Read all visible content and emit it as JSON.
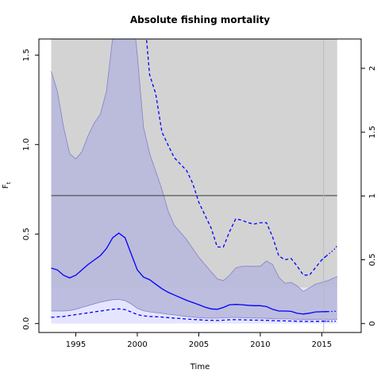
{
  "chart_data": {
    "type": "area",
    "title": "Absolute fishing mortality",
    "xlabel": "Time",
    "ylabel": "F",
    "ylabel_sub": "t",
    "xlim": [
      1992.0,
      2018.2
    ],
    "ylim": [
      -0.05,
      1.59
    ],
    "y2lim": [
      -0.07,
      2.23
    ],
    "x_ticks": [
      1995,
      2000,
      2005,
      2010,
      2015
    ],
    "x_tick_labels": [
      "1995",
      "2000",
      "2005",
      "2010",
      "2015"
    ],
    "y_ticks": [
      0.0,
      0.5,
      1.0,
      1.5
    ],
    "y_tick_labels": [
      "0.0",
      "0.5",
      "1.0",
      "1.5"
    ],
    "y2_ticks": [
      0,
      0.5,
      1,
      1.5,
      2
    ],
    "y2_tick_labels": [
      "0",
      "0.5",
      "1",
      "1.5",
      "2"
    ],
    "grey_region": {
      "x": [
        1993.0,
        2016.25
      ],
      "ymin": 0.2,
      "color": "#d3d3d3"
    },
    "reference_band": {
      "ymin": 0.0,
      "ymax": 0.2,
      "color": "#e5e5ff"
    },
    "reference_line": {
      "y": 0.715,
      "color": "#555555"
    },
    "end_of_data_x": 2015.15,
    "x": [
      1993.0,
      1993.5,
      1994.0,
      1994.5,
      1995.0,
      1995.5,
      1996.0,
      1996.5,
      1997.0,
      1997.5,
      1998.0,
      1998.5,
      1999.0,
      1999.5,
      2000.0,
      2000.5,
      2001.0,
      2001.5,
      2002.0,
      2002.5,
      2003.0,
      2003.5,
      2004.0,
      2004.5,
      2005.0,
      2005.5,
      2006.0,
      2006.5,
      2007.0,
      2007.5,
      2008.0,
      2008.5,
      2009.0,
      2009.5,
      2010.0,
      2010.5,
      2011.0,
      2011.5,
      2012.0,
      2012.5,
      2013.0,
      2013.5,
      2014.0,
      2014.5,
      2015.0,
      2015.5,
      2016.0,
      2016.25
    ],
    "F_estimate": [
      0.31,
      0.3,
      0.27,
      0.255,
      0.27,
      0.3,
      0.33,
      0.355,
      0.38,
      0.42,
      0.48,
      0.505,
      0.48,
      0.39,
      0.3,
      0.26,
      0.245,
      0.22,
      0.195,
      0.175,
      0.16,
      0.145,
      0.13,
      0.118,
      0.105,
      0.092,
      0.082,
      0.08,
      0.09,
      0.105,
      0.107,
      0.105,
      0.102,
      0.1,
      0.1,
      0.095,
      0.08,
      0.07,
      0.07,
      0.068,
      0.057,
      0.053,
      0.058,
      0.065,
      0.066,
      0.067,
      0.068,
      0.068
    ],
    "F_ci_lower": [
      0.07,
      0.07,
      0.07,
      0.073,
      0.08,
      0.09,
      0.1,
      0.11,
      0.12,
      0.127,
      0.133,
      0.135,
      0.128,
      0.11,
      0.085,
      0.072,
      0.065,
      0.061,
      0.057,
      0.052,
      0.048,
      0.044,
      0.04,
      0.036,
      0.033,
      0.031,
      0.03,
      0.03,
      0.032,
      0.034,
      0.034,
      0.033,
      0.032,
      0.031,
      0.03,
      0.029,
      0.027,
      0.026,
      0.026,
      0.025,
      0.023,
      0.022,
      0.022,
      0.023,
      0.023,
      0.023,
      0.023,
      0.023
    ],
    "F_ci_upper": [
      1.41,
      1.3,
      1.1,
      0.95,
      0.92,
      0.96,
      1.05,
      1.12,
      1.17,
      1.3,
      1.6,
      1.9,
      2.0,
      1.85,
      1.5,
      1.1,
      0.95,
      0.85,
      0.75,
      0.63,
      0.55,
      0.51,
      0.47,
      0.42,
      0.37,
      0.33,
      0.29,
      0.25,
      0.24,
      0.27,
      0.31,
      0.32,
      0.32,
      0.32,
      0.32,
      0.35,
      0.33,
      0.26,
      0.225,
      0.23,
      0.21,
      0.18,
      0.2,
      0.22,
      0.23,
      0.24,
      0.255,
      0.262
    ],
    "F_secondary_estimate": [
      0.035,
      0.037,
      0.04,
      0.045,
      0.05,
      0.055,
      0.06,
      0.065,
      0.07,
      0.075,
      0.08,
      0.082,
      0.078,
      0.065,
      0.05,
      0.043,
      0.04,
      0.038,
      0.036,
      0.033,
      0.03,
      0.028,
      0.025,
      0.023,
      0.021,
      0.019,
      0.018,
      0.017,
      0.019,
      0.021,
      0.022,
      0.021,
      0.02,
      0.019,
      0.019,
      0.018,
      0.016,
      0.015,
      0.015,
      0.014,
      0.013,
      0.012,
      0.012,
      0.012,
      0.013,
      0.013,
      0.013,
      0.013
    ],
    "F_secondary_upper": [
      2.5,
      2.5,
      2.5,
      2.5,
      2.5,
      2.5,
      2.5,
      2.5,
      2.5,
      2.5,
      2.5,
      2.5,
      2.5,
      2.5,
      2.5,
      2.5,
      1.95,
      1.8,
      1.5,
      1.4,
      1.3,
      1.25,
      1.2,
      1.1,
      0.95,
      0.85,
      0.75,
      0.6,
      0.6,
      0.72,
      0.82,
      0.81,
      0.79,
      0.78,
      0.79,
      0.79,
      0.68,
      0.53,
      0.5,
      0.51,
      0.45,
      0.38,
      0.38,
      0.44,
      0.5,
      0.54,
      0.58,
      0.61
    ],
    "series_colors": {
      "estimate": "#0000ff",
      "ci_fill": "#b8b8dc",
      "ci_edge": "#8080cc",
      "dashed": "#0000ff"
    }
  }
}
